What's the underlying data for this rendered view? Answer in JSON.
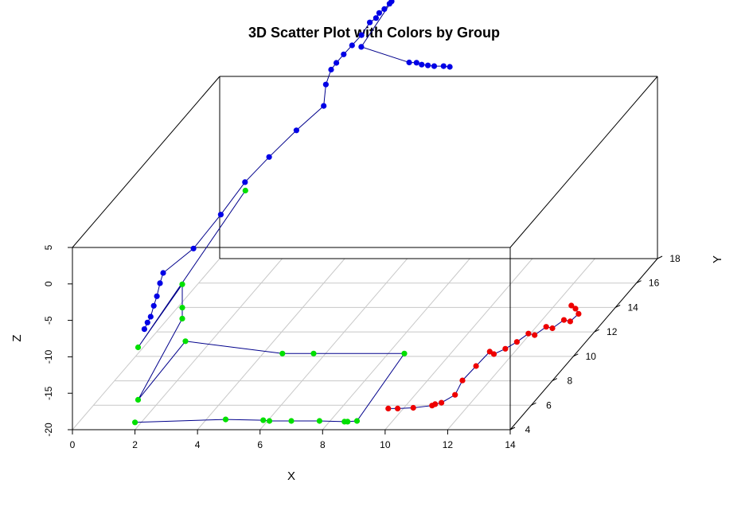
{
  "chart_data": {
    "type": "scatter",
    "title": "3D Scatter Plot with Colors by Group",
    "xlabel": "X",
    "ylabel": "Y",
    "zlabel": "Z",
    "xlim": [
      0,
      14
    ],
    "ylim": [
      4,
      18
    ],
    "zlim": [
      -20,
      5
    ],
    "x_ticks": [
      "0",
      "2",
      "4",
      "6",
      "8",
      "10",
      "12",
      "14"
    ],
    "y_ticks": [
      "4",
      "6",
      "8",
      "10",
      "12",
      "14",
      "16",
      "18"
    ],
    "z_ticks": [
      "-20",
      "-15",
      "-10",
      "-5",
      "0",
      "5"
    ],
    "grid": true,
    "point_style": "filled circles connected by lines",
    "series": [
      {
        "color": "#00e000",
        "points": [
          [
            1.9,
            4.3,
            -19.5
          ],
          [
            4.8,
            4.3,
            -19.1
          ],
          [
            6.0,
            4.3,
            -19.2
          ],
          [
            6.2,
            4.3,
            -19.3
          ],
          [
            6.9,
            4.3,
            -19.3
          ],
          [
            7.8,
            4.3,
            -19.3
          ],
          [
            8.6,
            4.3,
            -19.4
          ],
          [
            8.7,
            4.3,
            -19.4
          ],
          [
            9.0,
            4.3,
            -19.3
          ],
          [
            9.1,
            8.5,
            -17.1
          ],
          [
            6.2,
            8.5,
            -17.1
          ],
          [
            5.2,
            8.5,
            -17.1
          ],
          [
            2.1,
            8.5,
            -15.4
          ],
          [
            2.0,
            4.3,
            -16.4
          ],
          [
            2.0,
            8.5,
            -12.3
          ],
          [
            2.0,
            8.5,
            -10.8
          ],
          [
            2.0,
            8.5,
            -7.6
          ],
          [
            2.0,
            4.3,
            -9.2
          ],
          [
            2.0,
            14.5,
            -4.8
          ]
        ]
      },
      {
        "color": "#0000e6",
        "points": [
          [
            2.2,
            4.3,
            -6.7
          ],
          [
            2.3,
            4.3,
            -5.8
          ],
          [
            2.4,
            4.3,
            -5.0
          ],
          [
            2.5,
            4.3,
            -3.5
          ],
          [
            2.6,
            4.3,
            -2.2
          ],
          [
            2.7,
            4.3,
            -0.4
          ],
          [
            2.8,
            4.3,
            1.0
          ],
          [
            3.2,
            6.0,
            1.5
          ],
          [
            3.4,
            8.0,
            2.8
          ],
          [
            3.5,
            10.0,
            3.9
          ],
          [
            3.6,
            12.0,
            4.0
          ],
          [
            3.8,
            14.0,
            4.3
          ],
          [
            4.0,
            16.0,
            4.3
          ],
          [
            3.9,
            16.5,
            6.4
          ],
          [
            3.9,
            17.0,
            7.6
          ],
          [
            4.0,
            17.2,
            8.2
          ],
          [
            4.2,
            17.3,
            9.2
          ],
          [
            4.4,
            17.5,
            10.1
          ],
          [
            4.6,
            17.8,
            11.0
          ],
          [
            4.8,
            18.0,
            12.4
          ],
          [
            5.0,
            18.0,
            13.0
          ],
          [
            5.1,
            18.0,
            13.7
          ],
          [
            5.3,
            17.9,
            14.4
          ],
          [
            5.5,
            17.8,
            15.3
          ],
          [
            5.6,
            17.7,
            15.8
          ],
          [
            5.2,
            16.0,
            12.4
          ],
          [
            6.8,
            15.8,
            10.6
          ],
          [
            7.0,
            15.9,
            10.4
          ],
          [
            7.2,
            15.8,
            10.3
          ],
          [
            7.4,
            15.8,
            10.2
          ],
          [
            7.6,
            15.8,
            10.1
          ],
          [
            7.9,
            15.8,
            10.1
          ],
          [
            8.1,
            15.8,
            10.0
          ]
        ]
      },
      {
        "color": "#ee0000",
        "points": [
          [
            10.0,
            4.3,
            -17.6
          ],
          [
            10.3,
            4.3,
            -17.6
          ],
          [
            10.8,
            4.3,
            -17.5
          ],
          [
            11.4,
            4.3,
            -17.2
          ],
          [
            11.5,
            4.3,
            -17.0
          ],
          [
            11.7,
            4.3,
            -16.8
          ],
          [
            11.9,
            5.0,
            -16.9
          ],
          [
            11.8,
            6.0,
            -16.6
          ],
          [
            11.9,
            7.0,
            -16.3
          ],
          [
            12.0,
            8.0,
            -16.0
          ],
          [
            12.3,
            7.5,
            -15.5
          ],
          [
            12.5,
            8.0,
            -15.6
          ],
          [
            12.7,
            8.5,
            -15.5
          ],
          [
            12.9,
            9.0,
            -15.2
          ],
          [
            13.1,
            9.0,
            -15.4
          ],
          [
            13.3,
            9.5,
            -15.1
          ],
          [
            13.5,
            9.5,
            -15.3
          ],
          [
            13.7,
            10.0,
            -15.0
          ],
          [
            13.9,
            10.0,
            -15.2
          ],
          [
            14.0,
            10.5,
            -15.0
          ],
          [
            13.8,
            10.8,
            -14.8
          ],
          [
            13.6,
            11.0,
            -14.7
          ]
        ]
      }
    ]
  }
}
